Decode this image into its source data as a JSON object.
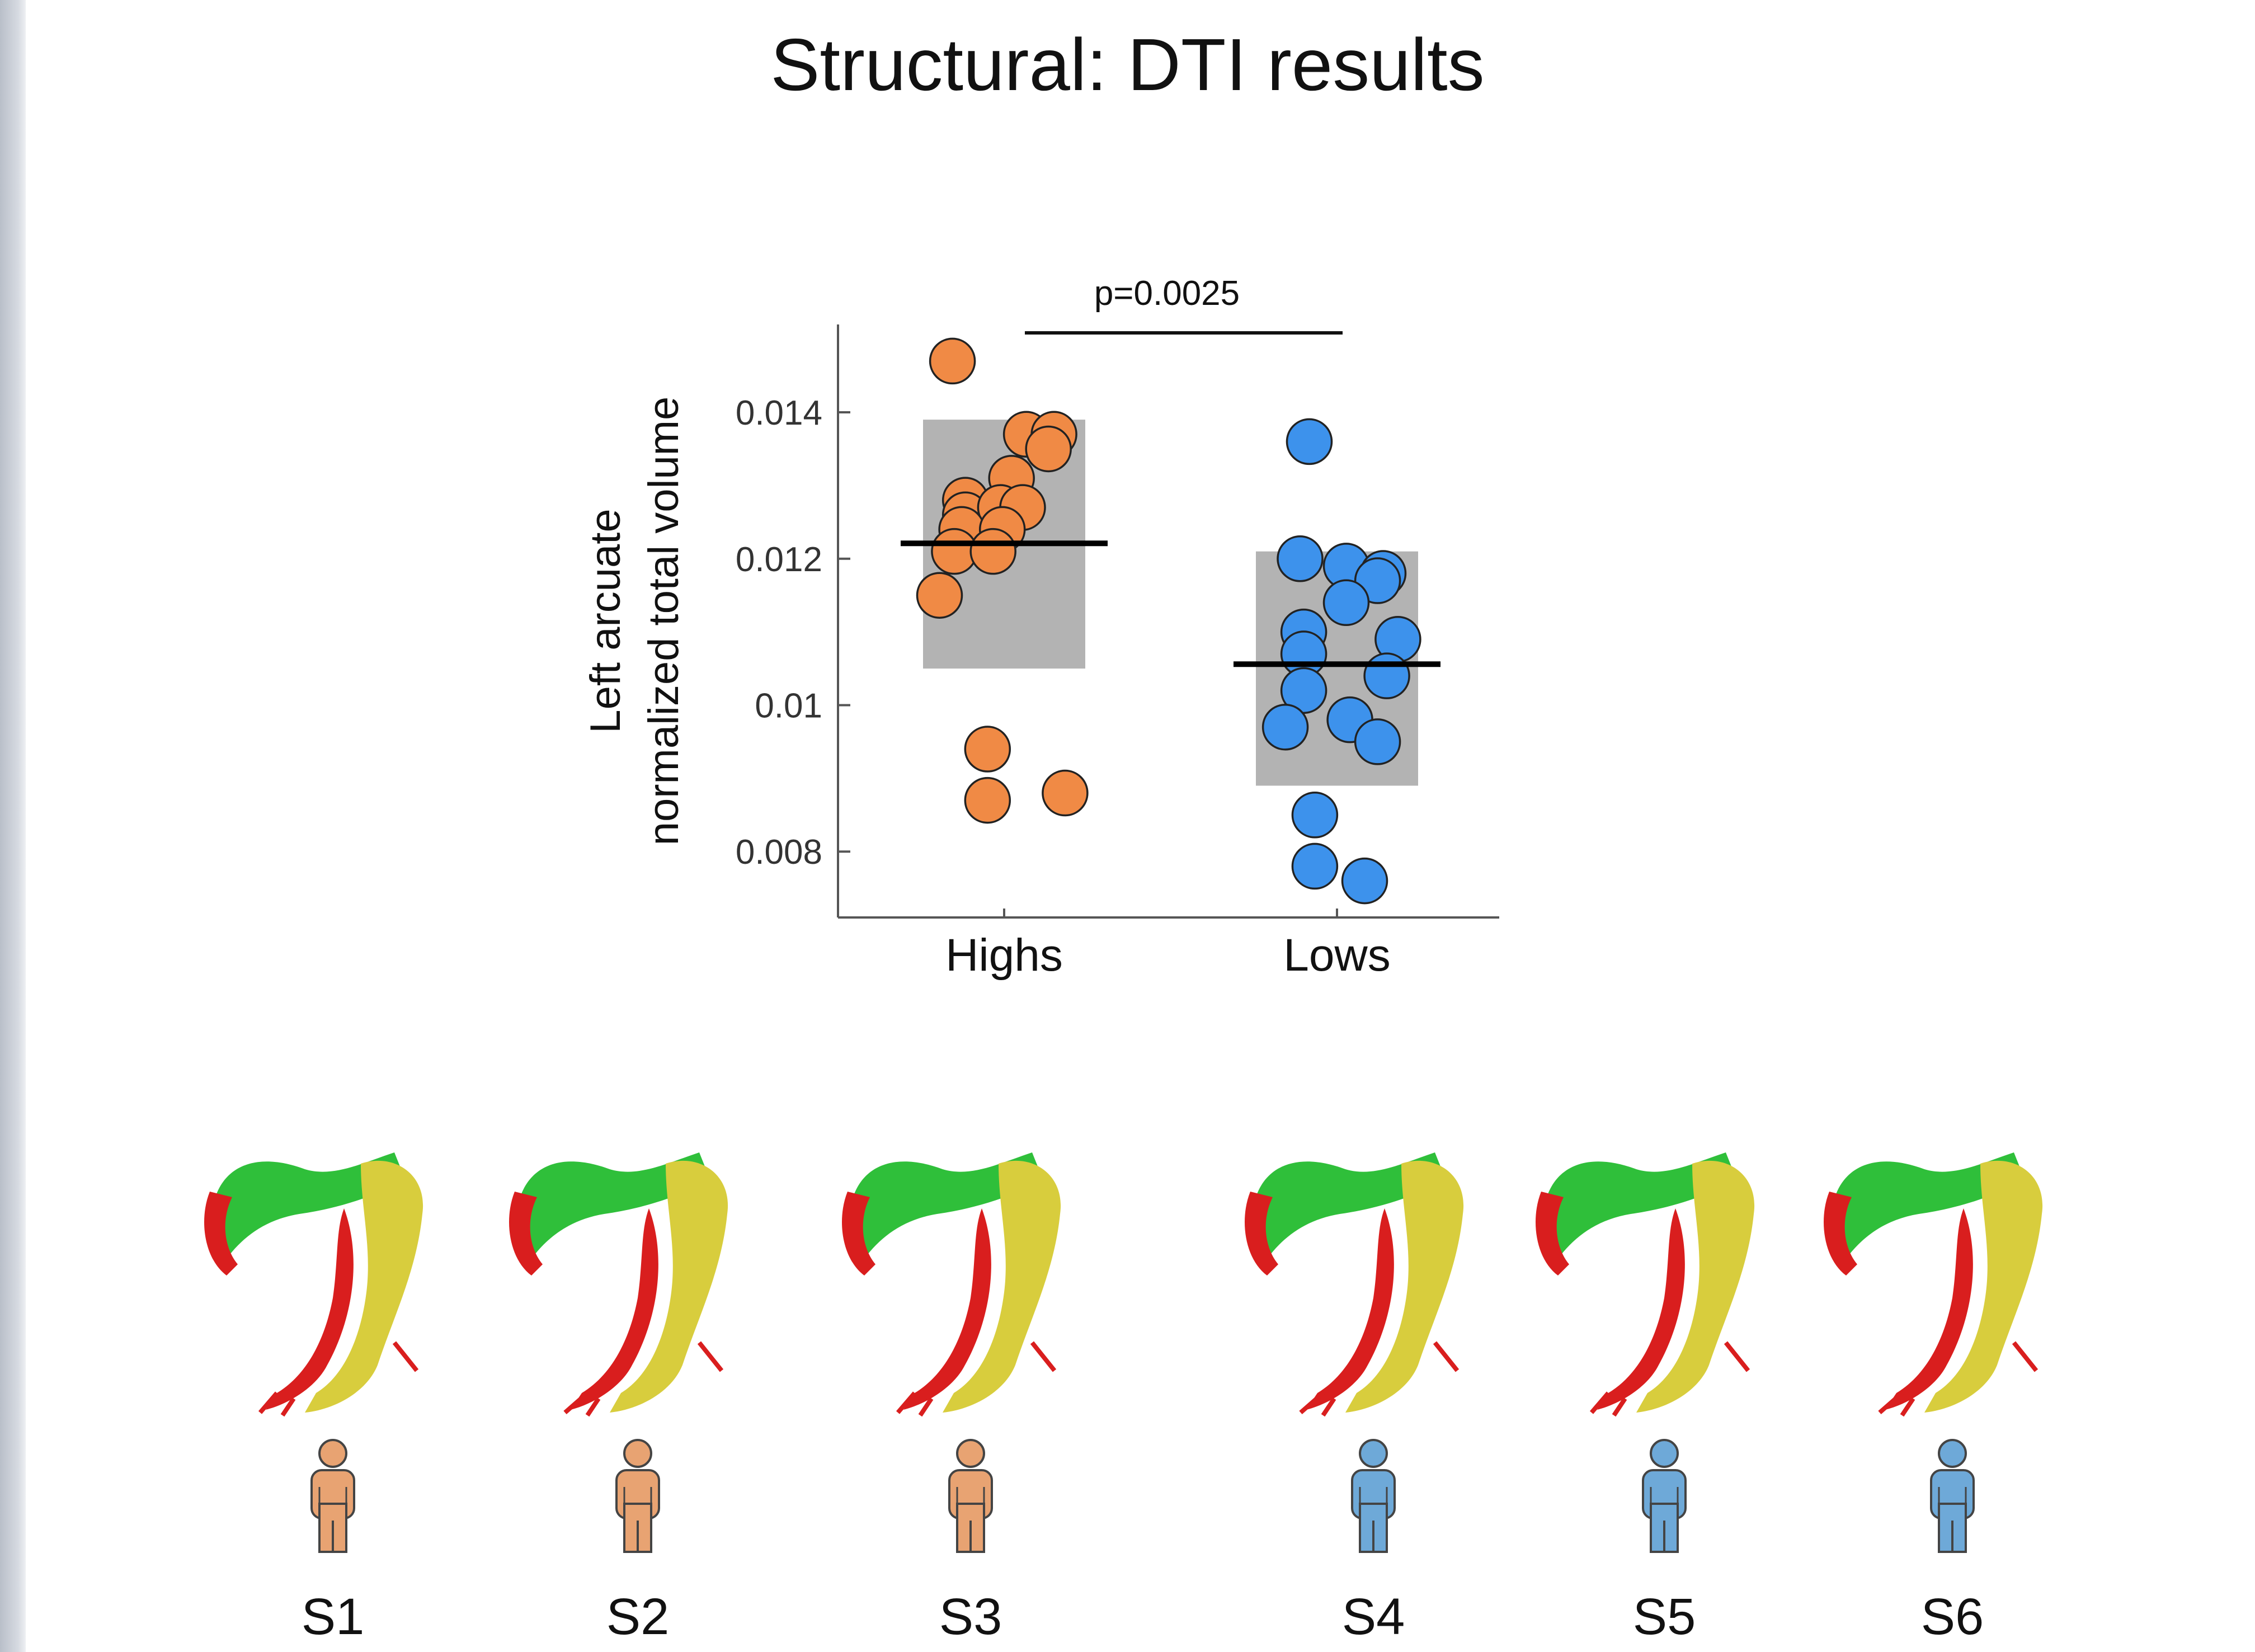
{
  "slide": {
    "title": "Structural: DTI results"
  },
  "colors": {
    "highs": "#f08a45",
    "lows": "#3d92ec",
    "box": "#b3b3b3",
    "mean_line": "#000000",
    "tract_green": "#2fbf3a",
    "tract_yellow": "#d8cd3d",
    "tract_red": "#d91e1e"
  },
  "chart_data": {
    "type": "scatter",
    "title": "",
    "xlabel": "",
    "ylabel": [
      "Left arcuate",
      "normalized total volume"
    ],
    "categories": [
      "Highs",
      "Lows"
    ],
    "ylim": [
      0.0071,
      0.0152
    ],
    "yticks": [
      0.008,
      0.01,
      0.012,
      0.014
    ],
    "ytick_labels": [
      "0.008",
      "0.01",
      "0.012",
      "0.014"
    ],
    "significance": {
      "label": "p=0.0025",
      "between": [
        "Highs",
        "Lows"
      ]
    },
    "series": [
      {
        "name": "Highs",
        "color": "#f08a45",
        "points": [
          {
            "jitter": -0.28,
            "y": 0.0147
          },
          {
            "jitter": 0.12,
            "y": 0.0137
          },
          {
            "jitter": 0.27,
            "y": 0.0137
          },
          {
            "jitter": 0.24,
            "y": 0.0135
          },
          {
            "jitter": 0.04,
            "y": 0.0131
          },
          {
            "jitter": -0.21,
            "y": 0.0128
          },
          {
            "jitter": -0.21,
            "y": 0.0126
          },
          {
            "jitter": -0.02,
            "y": 0.0127
          },
          {
            "jitter": 0.1,
            "y": 0.0127
          },
          {
            "jitter": -0.23,
            "y": 0.0124
          },
          {
            "jitter": -0.01,
            "y": 0.0124
          },
          {
            "jitter": -0.27,
            "y": 0.0121
          },
          {
            "jitter": -0.06,
            "y": 0.0121
          },
          {
            "jitter": -0.35,
            "y": 0.0115
          },
          {
            "jitter": -0.09,
            "y": 0.0094
          },
          {
            "jitter": -0.09,
            "y": 0.0087
          },
          {
            "jitter": 0.33,
            "y": 0.0088
          }
        ],
        "mean": 0.01221,
        "box": [
          0.0105,
          0.0139
        ]
      },
      {
        "name": "Lows",
        "color": "#3d92ec",
        "points": [
          {
            "jitter": -0.15,
            "y": 0.0136
          },
          {
            "jitter": -0.2,
            "y": 0.012
          },
          {
            "jitter": 0.05,
            "y": 0.0119
          },
          {
            "jitter": 0.25,
            "y": 0.0118
          },
          {
            "jitter": 0.22,
            "y": 0.0117
          },
          {
            "jitter": 0.05,
            "y": 0.0114
          },
          {
            "jitter": -0.18,
            "y": 0.011
          },
          {
            "jitter": 0.33,
            "y": 0.0109
          },
          {
            "jitter": -0.18,
            "y": 0.0107
          },
          {
            "jitter": 0.27,
            "y": 0.0104
          },
          {
            "jitter": -0.18,
            "y": 0.0102
          },
          {
            "jitter": 0.07,
            "y": 0.0098
          },
          {
            "jitter": -0.28,
            "y": 0.0097
          },
          {
            "jitter": 0.22,
            "y": 0.0095
          },
          {
            "jitter": -0.12,
            "y": 0.0085
          },
          {
            "jitter": -0.12,
            "y": 0.0078
          },
          {
            "jitter": 0.15,
            "y": 0.0076
          }
        ],
        "mean": 0.01056,
        "box": [
          0.0089,
          0.0121
        ]
      }
    ]
  },
  "subjects": [
    {
      "label": "S1",
      "group": "Highs"
    },
    {
      "label": "S2",
      "group": "Highs"
    },
    {
      "label": "S3",
      "group": "Highs"
    },
    {
      "label": "S4",
      "group": "Lows"
    },
    {
      "label": "S5",
      "group": "Lows"
    },
    {
      "label": "S6",
      "group": "Lows"
    }
  ]
}
